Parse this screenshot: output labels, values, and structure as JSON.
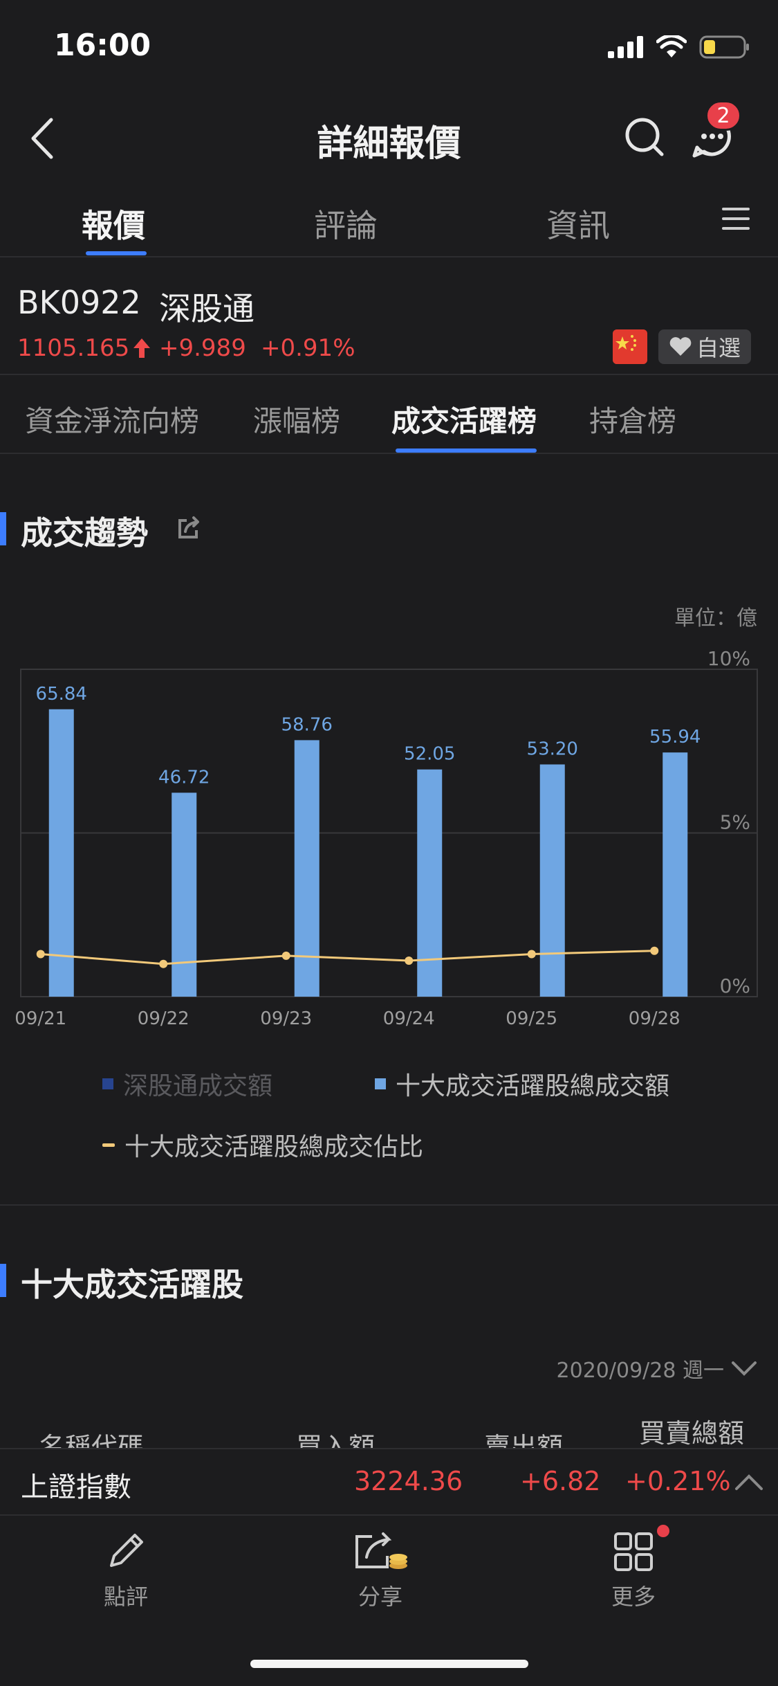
{
  "status_bar": {
    "time": "16:00"
  },
  "header": {
    "title": "詳細報價",
    "badge_count": "2"
  },
  "main_tabs": [
    {
      "label": "報價",
      "active": true
    },
    {
      "label": "評論",
      "active": false
    },
    {
      "label": "資訊",
      "active": false
    }
  ],
  "stock": {
    "code": "BK0922",
    "name": "深股通",
    "price": "1105.165",
    "change": "+9.989",
    "change_pct": "+0.91%",
    "favorite_label": "自選"
  },
  "sub_tabs": [
    {
      "label": "資金淨流向榜",
      "active": false
    },
    {
      "label": "漲幅榜",
      "active": false
    },
    {
      "label": "成交活躍榜",
      "active": true
    },
    {
      "label": "持倉榜",
      "active": false
    }
  ],
  "trend_section": {
    "title": "成交趨勢",
    "unit": "單位：億"
  },
  "chart_data": {
    "type": "bar",
    "categories": [
      "09/21",
      "09/22",
      "09/23",
      "09/24",
      "09/25",
      "09/28"
    ],
    "series": [
      {
        "name": "深股通成交額",
        "values": [
          null,
          null,
          null,
          null,
          null,
          null
        ],
        "color": "#27448f"
      },
      {
        "name": "十大成交活躍股總成交額",
        "values": [
          65.84,
          46.72,
          58.76,
          52.05,
          53.2,
          55.94
        ],
        "labels": [
          "65.84",
          "46.72",
          "58.76",
          "52.05",
          "53.20",
          "55.94"
        ],
        "color": "#6fa6e3"
      },
      {
        "name": "十大成交活躍股總成交佔比",
        "type": "line",
        "values": [
          1.3,
          1.0,
          1.25,
          1.1,
          1.3,
          1.4
        ],
        "color": "#f2c97a"
      }
    ],
    "y_right_ticks": [
      "10%",
      "5%",
      "0%"
    ],
    "y_right_range": [
      0,
      10
    ],
    "ylim": [
      0,
      75
    ],
    "grid": true,
    "legend": "bottom"
  },
  "top10_section": {
    "title": "十大成交活躍股",
    "date": "2020/09/28 週一"
  },
  "table_headers": [
    "名稱代碼",
    "買入額",
    "賣出額",
    "買賣總額"
  ],
  "index_bar": {
    "name": "上證指數",
    "value": "3224.36",
    "change": "+6.82",
    "change_pct": "+0.21%"
  },
  "toolbar": [
    {
      "label": "點評",
      "icon": "pencil-icon"
    },
    {
      "label": "分享",
      "icon": "share-icon"
    },
    {
      "label": "更多",
      "icon": "grid-icon"
    }
  ],
  "colors": {
    "accent": "#3d7dff",
    "up": "#ef4a4a",
    "background": "#1c1c1e"
  }
}
